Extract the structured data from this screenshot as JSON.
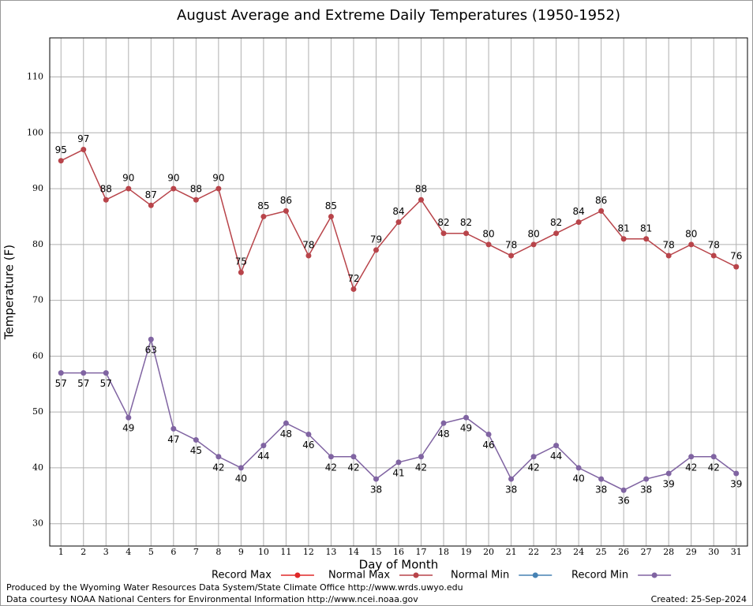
{
  "chart_data": {
    "type": "line",
    "title": "August Average and Extreme Daily Temperatures (1950-1952)",
    "xlabel": "Day of Month",
    "ylabel": "Temperature (F)",
    "x": [
      1,
      2,
      3,
      4,
      5,
      6,
      7,
      8,
      9,
      10,
      11,
      12,
      13,
      14,
      15,
      16,
      17,
      18,
      19,
      20,
      21,
      22,
      23,
      24,
      25,
      26,
      27,
      28,
      29,
      30,
      31
    ],
    "xlim": [
      0.5,
      31.5
    ],
    "xticks": [
      1,
      2,
      3,
      4,
      5,
      6,
      7,
      8,
      9,
      10,
      11,
      12,
      13,
      14,
      15,
      16,
      17,
      18,
      19,
      20,
      21,
      22,
      23,
      24,
      25,
      26,
      27,
      28,
      29,
      30,
      31
    ],
    "ylim": [
      26,
      117
    ],
    "yticks": [
      30,
      40,
      50,
      60,
      70,
      80,
      90,
      100,
      110
    ],
    "grid": true,
    "series": [
      {
        "name": "Record Max",
        "color": "#e02828",
        "values": [
          null,
          null,
          null,
          null,
          null,
          null,
          null,
          null,
          null,
          null,
          null,
          null,
          null,
          null,
          null,
          null,
          null,
          null,
          null,
          null,
          null,
          null,
          null,
          null,
          null,
          null,
          null,
          null,
          null,
          null,
          null
        ]
      },
      {
        "name": "Normal Max",
        "color": "#b8444a",
        "values": [
          95,
          97,
          88,
          90,
          87,
          90,
          88,
          90,
          75,
          85,
          86,
          78,
          85,
          72,
          79,
          84,
          88,
          82,
          82,
          80,
          78,
          80,
          82,
          84,
          86,
          81,
          81,
          78,
          80,
          78,
          76
        ]
      },
      {
        "name": "Normal Min",
        "color": "#4682b4",
        "values": [
          null,
          null,
          null,
          null,
          null,
          null,
          null,
          null,
          null,
          null,
          null,
          null,
          null,
          null,
          null,
          null,
          null,
          null,
          null,
          null,
          null,
          null,
          null,
          null,
          null,
          null,
          null,
          null,
          null,
          null,
          null
        ]
      },
      {
        "name": "Record Min",
        "color": "#8064a2",
        "values": [
          57,
          57,
          57,
          49,
          63,
          47,
          45,
          42,
          40,
          44,
          48,
          46,
          42,
          42,
          38,
          41,
          42,
          48,
          49,
          46,
          38,
          42,
          44,
          40,
          38,
          36,
          38,
          39,
          42,
          42,
          39
        ]
      }
    ],
    "footer": [
      "Produced by the Wyoming Water Resources Data System/State Climate Office http://www.wrds.uwyo.edu",
      "Data courtesy NOAA National Centers for Environmental Information http://www.ncei.noaa.gov"
    ],
    "created": "Created:  25-Sep-2024"
  }
}
